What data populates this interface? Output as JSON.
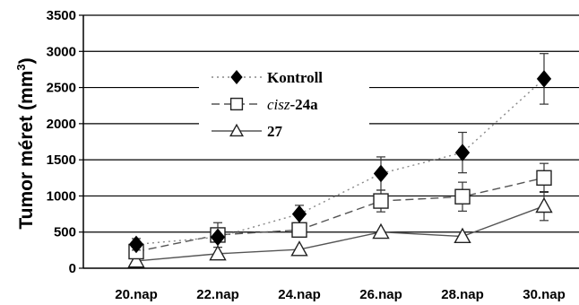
{
  "chart_data": {
    "type": "line",
    "categories": [
      "20.nap",
      "22.nap",
      "24.nap",
      "26.nap",
      "28.nap",
      "30.nap"
    ],
    "ylabel": "Tumor méret (mm³)",
    "ylabel_main": "Tumor méret (mm",
    "ylabel_sup": "3",
    "ylabel_end": ")",
    "ylim": [
      0,
      3500
    ],
    "yticks": [
      0,
      500,
      1000,
      1500,
      2000,
      2500,
      3000,
      3500
    ],
    "ytick_labels": [
      "0",
      "500",
      "1000",
      "1500",
      "2000",
      "2500",
      "3000",
      "3500"
    ],
    "grid": "horizontal",
    "legend_position": "upper-left",
    "series": [
      {
        "name": "Kontroll",
        "legend": {
          "prefix": "",
          "italic": "",
          "suffix": "Kontroll"
        },
        "marker": "diamond-filled",
        "line": "dotted",
        "color": "#000000",
        "line_color": "#888888",
        "values": [
          330,
          430,
          750,
          1310,
          1600,
          2620
        ],
        "error": [
          80,
          0,
          120,
          230,
          280,
          350
        ]
      },
      {
        "name": "cisz-24a",
        "legend": {
          "prefix": "",
          "italic": "cisz",
          "suffix": "-24a"
        },
        "marker": "square-open",
        "line": "dashed",
        "color": "#000000",
        "line_color": "#555555",
        "values": [
          230,
          460,
          530,
          930,
          990,
          1250
        ],
        "error": [
          0,
          170,
          0,
          150,
          200,
          200
        ]
      },
      {
        "name": "27",
        "legend": {
          "prefix": "",
          "italic": "",
          "suffix": "27"
        },
        "marker": "triangle-open",
        "line": "solid",
        "color": "#000000",
        "line_color": "#555555",
        "values": [
          100,
          200,
          260,
          500,
          440,
          860
        ],
        "error": [
          0,
          0,
          0,
          0,
          0,
          200
        ]
      }
    ]
  }
}
